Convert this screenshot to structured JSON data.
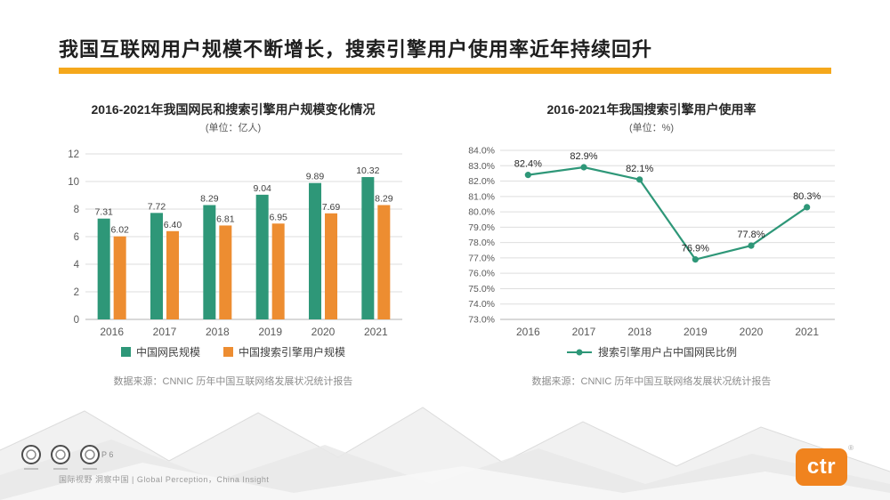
{
  "slide": {
    "title": "我国互联网用户规模不断增长，搜索引擎用户使用率近年持续回升",
    "page_number": "P 6",
    "footer_text": "国际视野 洞察中国 | Global Perception，China Insight",
    "logo_text": "ctr",
    "logo_reg_mark": "®"
  },
  "colors": {
    "green": "#2e9778",
    "orange": "#ed8d31",
    "title_underline": "#f5a81c",
    "ctr_orange": "#f0831e"
  },
  "chart_data": [
    {
      "type": "bar",
      "title": "2016-2021年我国网民和搜索引擎用户规模变化情况",
      "subtitle": "(单位：亿人)",
      "categories": [
        "2016",
        "2017",
        "2018",
        "2019",
        "2020",
        "2021"
      ],
      "series": [
        {
          "name": "中国网民规模",
          "color": "#2e9778",
          "values": [
            7.31,
            7.72,
            8.29,
            9.04,
            9.89,
            10.32
          ]
        },
        {
          "name": "中国搜索引擎用户规模",
          "color": "#ed8d31",
          "values": [
            6.02,
            6.4,
            6.81,
            6.95,
            7.69,
            8.29
          ]
        }
      ],
      "ylim": [
        0,
        12
      ],
      "ytick_step": 2,
      "grid": true,
      "legend_position": "bottom",
      "source": "数据来源：CNNIC 历年中国互联网络发展状况统计报告"
    },
    {
      "type": "line",
      "title": "2016-2021年我国搜索引擎用户使用率",
      "subtitle": "(单位：%)",
      "categories": [
        "2016",
        "2017",
        "2018",
        "2019",
        "2020",
        "2021"
      ],
      "series": [
        {
          "name": "搜索引擎用户占中国网民比例",
          "color": "#2e9778",
          "values": [
            82.4,
            82.9,
            82.1,
            76.9,
            77.8,
            80.3
          ]
        }
      ],
      "ylim": [
        73,
        84
      ],
      "ytick_step": 1,
      "grid": true,
      "legend_position": "bottom",
      "source": "数据来源：CNNIC 历年中国互联网络发展状况统计报告"
    }
  ]
}
